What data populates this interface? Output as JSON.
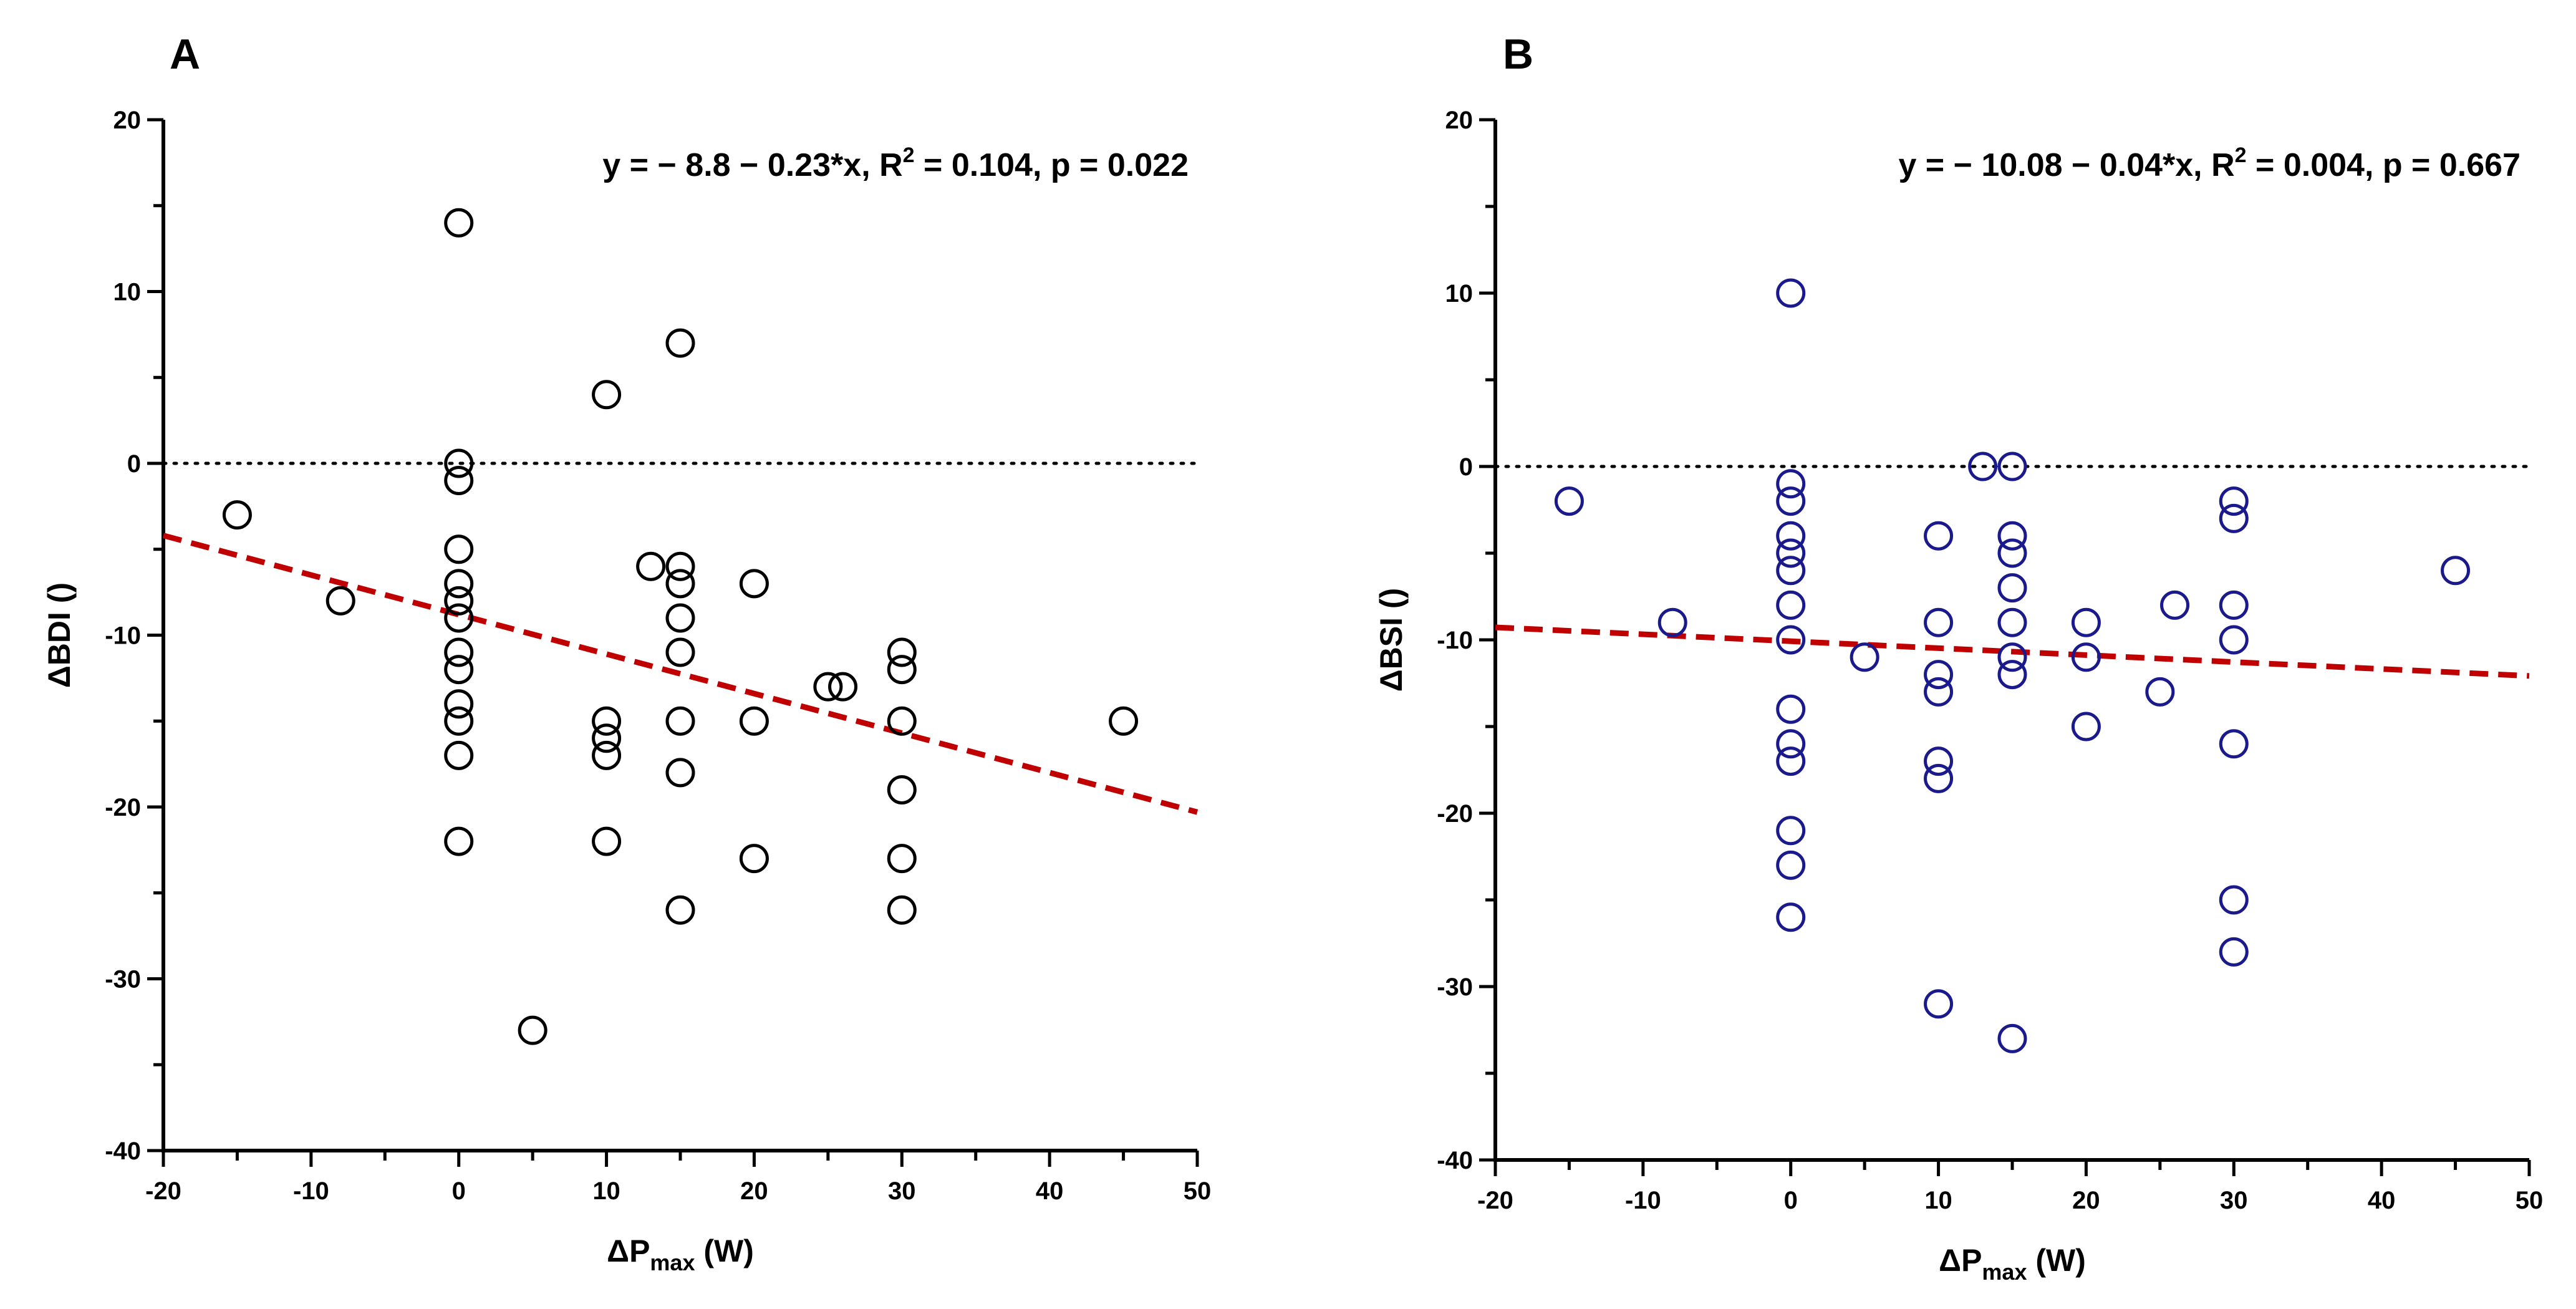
{
  "chart_data": [
    {
      "type": "scatter",
      "panel": "A",
      "xlabel": {
        "prefix": "ΔP",
        "sub": "max",
        "suffix": " (W)"
      },
      "ylabel": "ΔBDI ()",
      "xlim": [
        -20,
        50
      ],
      "ylim": [
        -40,
        20
      ],
      "xticks": [
        -20,
        -10,
        0,
        10,
        20,
        30,
        40,
        50
      ],
      "yticks": [
        -40,
        -30,
        -20,
        -10,
        0,
        10,
        20
      ],
      "marker_color": "#000000",
      "fit_color": "#c00000",
      "reference_line_y": 0,
      "equation": {
        "before": "y = − 8.8 − 0.23*x, R",
        "sup": "2",
        "after": " = 0.104, p = 0.022"
      },
      "fit": {
        "intercept": -8.8,
        "slope": -0.23
      },
      "points": [
        {
          "x": -15,
          "y": -3
        },
        {
          "x": -8,
          "y": -8
        },
        {
          "x": 0,
          "y": 14
        },
        {
          "x": 0,
          "y": 0
        },
        {
          "x": 0,
          "y": -1
        },
        {
          "x": 0,
          "y": -5
        },
        {
          "x": 0,
          "y": -7
        },
        {
          "x": 0,
          "y": -8
        },
        {
          "x": 0,
          "y": -9
        },
        {
          "x": 0,
          "y": -11
        },
        {
          "x": 0,
          "y": -12
        },
        {
          "x": 0,
          "y": -14
        },
        {
          "x": 0,
          "y": -15
        },
        {
          "x": 0,
          "y": -17
        },
        {
          "x": 0,
          "y": -22
        },
        {
          "x": 5,
          "y": -33
        },
        {
          "x": 10,
          "y": 4
        },
        {
          "x": 10,
          "y": -15
        },
        {
          "x": 10,
          "y": -16
        },
        {
          "x": 10,
          "y": -17
        },
        {
          "x": 10,
          "y": -22
        },
        {
          "x": 13,
          "y": -6
        },
        {
          "x": 15,
          "y": 7
        },
        {
          "x": 15,
          "y": -6
        },
        {
          "x": 15,
          "y": -7
        },
        {
          "x": 15,
          "y": -9
        },
        {
          "x": 15,
          "y": -11
        },
        {
          "x": 15,
          "y": -15
        },
        {
          "x": 15,
          "y": -18
        },
        {
          "x": 15,
          "y": -26
        },
        {
          "x": 20,
          "y": -7
        },
        {
          "x": 20,
          "y": -15
        },
        {
          "x": 20,
          "y": -23
        },
        {
          "x": 25,
          "y": -13
        },
        {
          "x": 26,
          "y": -13
        },
        {
          "x": 30,
          "y": -11
        },
        {
          "x": 30,
          "y": -12
        },
        {
          "x": 30,
          "y": -15
        },
        {
          "x": 30,
          "y": -19
        },
        {
          "x": 30,
          "y": -23
        },
        {
          "x": 30,
          "y": -26
        },
        {
          "x": 45,
          "y": -15
        }
      ]
    },
    {
      "type": "scatter",
      "panel": "B",
      "xlabel": {
        "prefix": "ΔP",
        "sub": "max",
        "suffix": " (W)"
      },
      "ylabel": "ΔBSI ()",
      "xlim": [
        -20,
        50
      ],
      "ylim": [
        -40,
        20
      ],
      "xticks": [
        -20,
        -10,
        0,
        10,
        20,
        30,
        40,
        50
      ],
      "yticks": [
        -40,
        -30,
        -20,
        -10,
        0,
        10,
        20
      ],
      "marker_color": "#1a1a8c",
      "fit_color": "#c00000",
      "reference_line_y": 0,
      "equation": {
        "before": "y = − 10.08 − 0.04*x, R",
        "sup": "2",
        "after": " = 0.004, p = 0.667"
      },
      "fit": {
        "intercept": -10.08,
        "slope": -0.04
      },
      "points": [
        {
          "x": -15,
          "y": -2
        },
        {
          "x": -8,
          "y": -9
        },
        {
          "x": 0,
          "y": 10
        },
        {
          "x": 0,
          "y": -1
        },
        {
          "x": 0,
          "y": -2
        },
        {
          "x": 0,
          "y": -4
        },
        {
          "x": 0,
          "y": -5
        },
        {
          "x": 0,
          "y": -6
        },
        {
          "x": 0,
          "y": -8
        },
        {
          "x": 0,
          "y": -10
        },
        {
          "x": 0,
          "y": -14
        },
        {
          "x": 0,
          "y": -16
        },
        {
          "x": 0,
          "y": -17
        },
        {
          "x": 0,
          "y": -21
        },
        {
          "x": 0,
          "y": -23
        },
        {
          "x": 0,
          "y": -26
        },
        {
          "x": 5,
          "y": -11
        },
        {
          "x": 10,
          "y": -4
        },
        {
          "x": 10,
          "y": -9
        },
        {
          "x": 10,
          "y": -12
        },
        {
          "x": 10,
          "y": -13
        },
        {
          "x": 10,
          "y": -17
        },
        {
          "x": 10,
          "y": -18
        },
        {
          "x": 10,
          "y": -31
        },
        {
          "x": 13,
          "y": 0
        },
        {
          "x": 15,
          "y": 0
        },
        {
          "x": 15,
          "y": -4
        },
        {
          "x": 15,
          "y": -5
        },
        {
          "x": 15,
          "y": -7
        },
        {
          "x": 15,
          "y": -9
        },
        {
          "x": 15,
          "y": -11
        },
        {
          "x": 15,
          "y": -12
        },
        {
          "x": 15,
          "y": -33
        },
        {
          "x": 20,
          "y": -9
        },
        {
          "x": 20,
          "y": -11
        },
        {
          "x": 20,
          "y": -15
        },
        {
          "x": 25,
          "y": -13
        },
        {
          "x": 26,
          "y": -8
        },
        {
          "x": 30,
          "y": -2
        },
        {
          "x": 30,
          "y": -3
        },
        {
          "x": 30,
          "y": -8
        },
        {
          "x": 30,
          "y": -10
        },
        {
          "x": 30,
          "y": -16
        },
        {
          "x": 30,
          "y": -25
        },
        {
          "x": 30,
          "y": -28
        },
        {
          "x": 45,
          "y": -6
        }
      ]
    }
  ]
}
